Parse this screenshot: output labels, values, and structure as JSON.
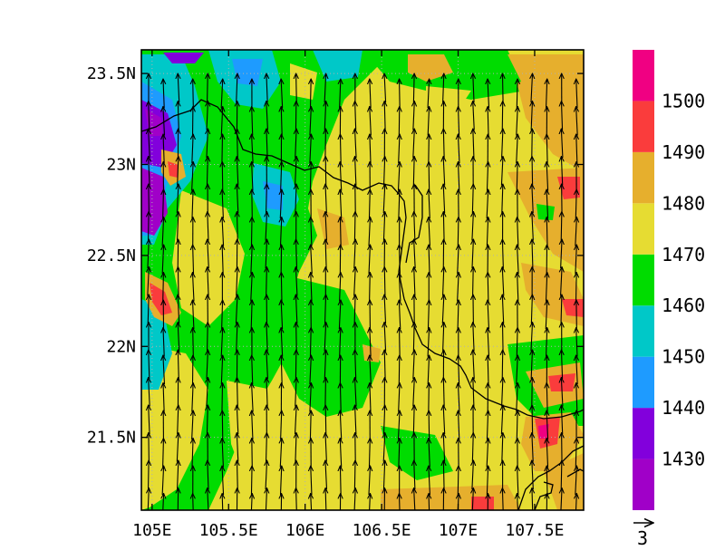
{
  "map": {
    "lon_range": [
      104.93,
      107.82
    ],
    "lat_range": [
      21.1,
      23.63
    ],
    "x_ticks": [
      {
        "lon": 105.0,
        "label": "105E"
      },
      {
        "lon": 105.5,
        "label": "105.5E"
      },
      {
        "lon": 106.0,
        "label": "106E"
      },
      {
        "lon": 106.5,
        "label": "106.5E"
      },
      {
        "lon": 107.0,
        "label": "107E"
      },
      {
        "lon": 107.5,
        "label": "107.5E"
      }
    ],
    "y_ticks": [
      {
        "lat": 21.5,
        "label": "21.5N"
      },
      {
        "lat": 22.0,
        "label": "22N"
      },
      {
        "lat": 22.5,
        "label": "22.5N"
      },
      {
        "lat": 23.0,
        "label": "23N"
      },
      {
        "lat": 23.5,
        "label": "23.5N"
      }
    ],
    "grid_lines": true,
    "field": "geopotential height contours with wind vectors",
    "wind_direction": "southerly (arrows point north)",
    "border_color": "#000000"
  },
  "colorbar": {
    "labels": [
      "1430",
      "1440",
      "1450",
      "1460",
      "1470",
      "1480",
      "1490",
      "1500"
    ],
    "bins": [
      {
        "color": "#a000c8"
      },
      {
        "color": "#8200dc"
      },
      {
        "color": "#1e9bff"
      },
      {
        "color": "#00c8c8"
      },
      {
        "color": "#00dc00"
      },
      {
        "color": "#e6dc32"
      },
      {
        "color": "#e6af2d"
      },
      {
        "color": "#fa3c3c"
      },
      {
        "color": "#f00082"
      }
    ]
  },
  "reference_vector": {
    "label": "3"
  }
}
